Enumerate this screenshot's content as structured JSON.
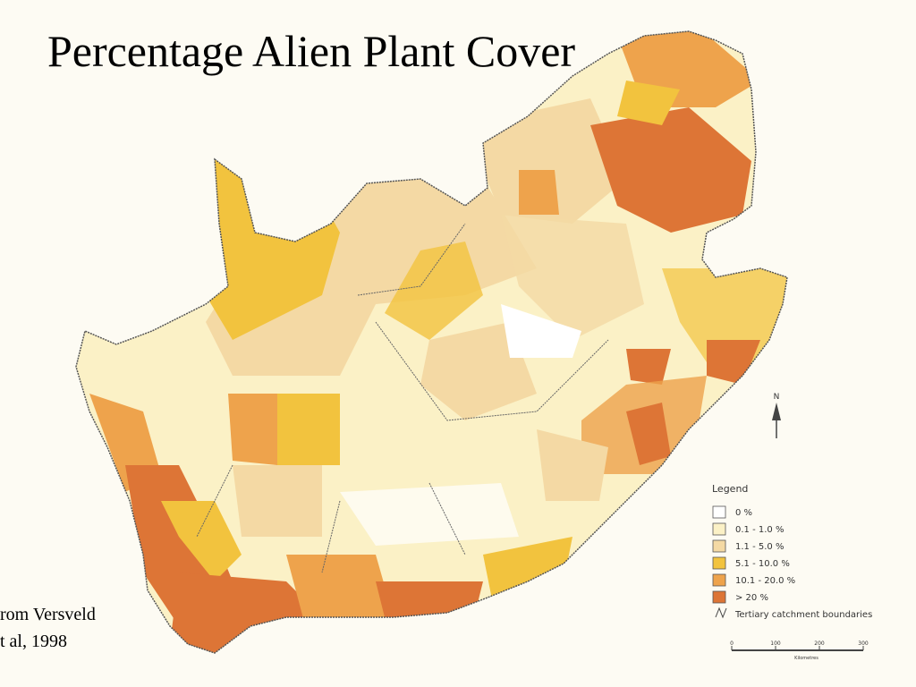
{
  "title": "Percentage Alien Plant Cover",
  "citation": [
    "rom Versveld",
    "t al, 1998"
  ],
  "north": "N",
  "legend": {
    "title": "Legend",
    "items": [
      {
        "label": "0 %",
        "color": "#ffffff"
      },
      {
        "label": "0.1 - 1.0 %",
        "color": "#fbf1c6"
      },
      {
        "label": "1.1 - 5.0 %",
        "color": "#f4d9a4"
      },
      {
        "label": "5.1 - 10.0 %",
        "color": "#f2c33e"
      },
      {
        "label": "10.1 - 20.0 %",
        "color": "#eea34c"
      },
      {
        "label": "> 20 %",
        "color": "#dd7536"
      }
    ],
    "boundary": "Tertiary catchment boundaries"
  },
  "scale": {
    "ticks": [
      0,
      100,
      200,
      300
    ],
    "unit": "Kilometres"
  }
}
